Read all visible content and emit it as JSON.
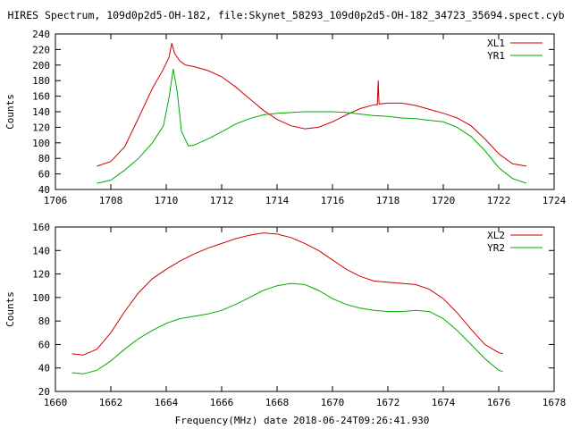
{
  "title": "HIRES Spectrum, 109d0p2d5-OH-182, file:Skynet_58293_109d0p2d5-OH-182_34723_35694.spect.cyb",
  "xlabel": "Frequency(MHz) date 2018-06-24T09:26:41.930",
  "chart_data": [
    {
      "type": "line",
      "ylabel": "Counts",
      "xlim": [
        1706,
        1724
      ],
      "ylim": [
        40,
        240
      ],
      "xticks": [
        1706,
        1708,
        1710,
        1712,
        1714,
        1716,
        1718,
        1720,
        1722,
        1724
      ],
      "yticks": [
        40,
        60,
        80,
        100,
        120,
        140,
        160,
        180,
        200,
        220,
        240
      ],
      "legend_position": "top-right",
      "series": [
        {
          "name": "XL1",
          "color": "#cc0000",
          "points": [
            [
              1707.5,
              70
            ],
            [
              1708.0,
              76
            ],
            [
              1708.5,
              95
            ],
            [
              1709.0,
              132
            ],
            [
              1709.5,
              170
            ],
            [
              1709.9,
              195
            ],
            [
              1710.1,
              210
            ],
            [
              1710.2,
              228
            ],
            [
              1710.3,
              215
            ],
            [
              1710.5,
              205
            ],
            [
              1710.7,
              200
            ],
            [
              1711.0,
              198
            ],
            [
              1711.5,
              193
            ],
            [
              1712.0,
              185
            ],
            [
              1712.5,
              172
            ],
            [
              1713.0,
              157
            ],
            [
              1713.5,
              142
            ],
            [
              1714.0,
              130
            ],
            [
              1714.5,
              122
            ],
            [
              1715.0,
              118
            ],
            [
              1715.5,
              120
            ],
            [
              1716.0,
              127
            ],
            [
              1716.5,
              136
            ],
            [
              1717.0,
              144
            ],
            [
              1717.5,
              149
            ],
            [
              1717.62,
              149
            ],
            [
              1717.65,
              180
            ],
            [
              1717.68,
              150
            ],
            [
              1718.0,
              151
            ],
            [
              1718.5,
              151
            ],
            [
              1719.0,
              148
            ],
            [
              1719.5,
              143
            ],
            [
              1720.0,
              138
            ],
            [
              1720.5,
              132
            ],
            [
              1721.0,
              122
            ],
            [
              1721.5,
              105
            ],
            [
              1722.0,
              86
            ],
            [
              1722.5,
              73
            ],
            [
              1723.0,
              70
            ]
          ]
        },
        {
          "name": "YR1",
          "color": "#00aa00",
          "points": [
            [
              1707.5,
              48
            ],
            [
              1708.0,
              52
            ],
            [
              1708.5,
              65
            ],
            [
              1709.0,
              80
            ],
            [
              1709.5,
              100
            ],
            [
              1709.9,
              122
            ],
            [
              1710.1,
              158
            ],
            [
              1710.25,
              195
            ],
            [
              1710.4,
              165
            ],
            [
              1710.55,
              115
            ],
            [
              1710.8,
              96
            ],
            [
              1711.0,
              97
            ],
            [
              1711.5,
              105
            ],
            [
              1712.0,
              114
            ],
            [
              1712.5,
              124
            ],
            [
              1713.0,
              131
            ],
            [
              1713.5,
              136
            ],
            [
              1714.0,
              138
            ],
            [
              1714.5,
              139
            ],
            [
              1715.0,
              140
            ],
            [
              1715.5,
              140
            ],
            [
              1716.0,
              140
            ],
            [
              1716.5,
              139
            ],
            [
              1717.0,
              137
            ],
            [
              1717.5,
              135
            ],
            [
              1718.0,
              134
            ],
            [
              1718.5,
              132
            ],
            [
              1719.0,
              131
            ],
            [
              1719.5,
              129
            ],
            [
              1720.0,
              127
            ],
            [
              1720.5,
              120
            ],
            [
              1721.0,
              108
            ],
            [
              1721.5,
              90
            ],
            [
              1722.0,
              68
            ],
            [
              1722.5,
              54
            ],
            [
              1723.0,
              48
            ]
          ]
        }
      ]
    },
    {
      "type": "line",
      "ylabel": "Counts",
      "xlim": [
        1660,
        1678
      ],
      "ylim": [
        20,
        160
      ],
      "xticks": [
        1660,
        1662,
        1664,
        1666,
        1668,
        1670,
        1672,
        1674,
        1676,
        1678
      ],
      "yticks": [
        20,
        40,
        60,
        80,
        100,
        120,
        140,
        160
      ],
      "legend_position": "top-right",
      "series": [
        {
          "name": "XL2",
          "color": "#cc0000",
          "points": [
            [
              1660.6,
              52
            ],
            [
              1661.0,
              51
            ],
            [
              1661.5,
              56
            ],
            [
              1662.0,
              70
            ],
            [
              1662.5,
              88
            ],
            [
              1663.0,
              104
            ],
            [
              1663.5,
              116
            ],
            [
              1664.0,
              124
            ],
            [
              1664.5,
              131
            ],
            [
              1665.0,
              137
            ],
            [
              1665.5,
              142
            ],
            [
              1666.0,
              146
            ],
            [
              1666.5,
              150
            ],
            [
              1667.0,
              153
            ],
            [
              1667.5,
              155
            ],
            [
              1668.0,
              154
            ],
            [
              1668.5,
              151
            ],
            [
              1669.0,
              146
            ],
            [
              1669.5,
              140
            ],
            [
              1670.0,
              132
            ],
            [
              1670.5,
              124
            ],
            [
              1671.0,
              118
            ],
            [
              1671.5,
              114
            ],
            [
              1672.0,
              113
            ],
            [
              1672.5,
              112
            ],
            [
              1673.0,
              111
            ],
            [
              1673.5,
              107
            ],
            [
              1674.0,
              99
            ],
            [
              1674.5,
              87
            ],
            [
              1675.0,
              73
            ],
            [
              1675.5,
              60
            ],
            [
              1676.0,
              53
            ],
            [
              1676.15,
              52
            ]
          ]
        },
        {
          "name": "YR2",
          "color": "#00aa00",
          "points": [
            [
              1660.6,
              36
            ],
            [
              1661.0,
              35
            ],
            [
              1661.5,
              38
            ],
            [
              1662.0,
              46
            ],
            [
              1662.5,
              56
            ],
            [
              1663.0,
              65
            ],
            [
              1663.5,
              72
            ],
            [
              1664.0,
              78
            ],
            [
              1664.5,
              82
            ],
            [
              1665.0,
              84
            ],
            [
              1665.5,
              86
            ],
            [
              1666.0,
              89
            ],
            [
              1666.5,
              94
            ],
            [
              1667.0,
              100
            ],
            [
              1667.5,
              106
            ],
            [
              1668.0,
              110
            ],
            [
              1668.5,
              112
            ],
            [
              1669.0,
              111
            ],
            [
              1669.5,
              106
            ],
            [
              1670.0,
              99
            ],
            [
              1670.5,
              94
            ],
            [
              1671.0,
              91
            ],
            [
              1671.5,
              89
            ],
            [
              1672.0,
              88
            ],
            [
              1672.5,
              88
            ],
            [
              1673.0,
              89
            ],
            [
              1673.5,
              88
            ],
            [
              1674.0,
              82
            ],
            [
              1674.5,
              72
            ],
            [
              1675.0,
              60
            ],
            [
              1675.5,
              48
            ],
            [
              1676.0,
              38
            ],
            [
              1676.15,
              37
            ]
          ]
        }
      ]
    }
  ]
}
